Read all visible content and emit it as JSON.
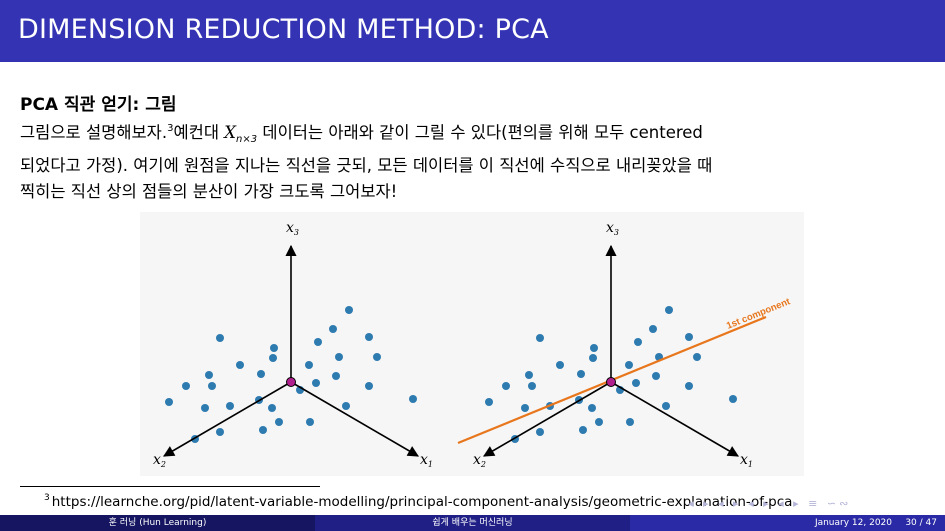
{
  "header": {
    "title": "DIMENSION REDUCTION METHOD: PCA"
  },
  "subtitle": "PCA 직관 얻기: 그림",
  "body": {
    "line1_a": "그림으로 설명해보자.",
    "line1_fnmark": "3",
    "line1_b": "예컨대 ",
    "math_var": "X",
    "math_sub": "n×3",
    "line1_c": " 데이터는 아래와 같이 그릴 수 있다(편의를 위해 모두 centered",
    "line2": "되었다고 가정). 여기에 원점을 지나는 직선을 긋되, 모든 데이터를 이 직선에 수직으로 내리꽂았을 때",
    "line3": "찍히는 직선 상의 점들의 분산이 가장 크도록 그어보자!"
  },
  "figure": {
    "axis_labels": {
      "x1": "x",
      "x1_sub": "1",
      "x2": "x",
      "x2_sub": "2",
      "x3": "x",
      "x3_sub": "3"
    },
    "component_label": "1st component",
    "colors": {
      "point": "#2e7bb0",
      "origin": "#b0208f",
      "component": "#e8761c"
    }
  },
  "footnote": {
    "mark": "3",
    "text": "https://learnche.org/pid/latent-variable-modelling/principal-component-analysis/geometric-explanation-of-pca"
  },
  "footer": {
    "author": "훈 러닝 (Hun Learning)",
    "course": "쉽게 배우는 머신러닝",
    "date": "January 12, 2020",
    "page": "30 / 47"
  },
  "nav": {
    "symbols": "◂ ▸ ◂ ▸ ◂ ▸ ◂ ▸ ≡ ∽∾"
  }
}
